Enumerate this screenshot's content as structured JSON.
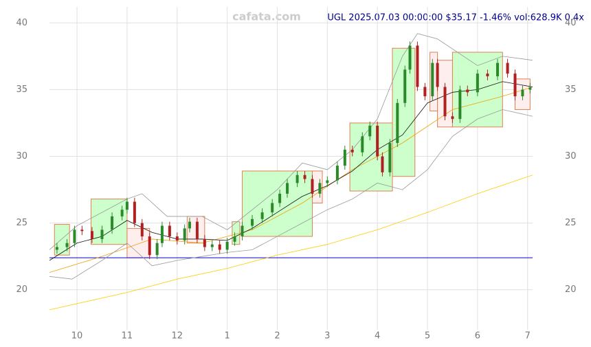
{
  "chart_data": {
    "type": "candlestick",
    "annotation": "UGL 2025.07.03 00:00:00 $35.17 -1.46% vol:628.9K 0.4x",
    "watermark": "cafata.com",
    "xlim": [
      0.45,
      10.1
    ],
    "xticks": [
      {
        "value": 1,
        "label": "10"
      },
      {
        "value": 2,
        "label": "11"
      },
      {
        "value": 3,
        "label": "12"
      },
      {
        "value": 4,
        "label": "1"
      },
      {
        "value": 5,
        "label": "2"
      },
      {
        "value": 6,
        "label": "3"
      },
      {
        "value": 7,
        "label": "4"
      },
      {
        "value": 8,
        "label": "5"
      },
      {
        "value": 9,
        "label": "6"
      },
      {
        "value": 10,
        "label": "7"
      }
    ],
    "ylim": [
      17,
      41.2
    ],
    "yticks": [
      20,
      25,
      30,
      35,
      40
    ],
    "grid": true,
    "up_color": "#2a8a2a",
    "down_color": "#b02020",
    "x": [
      0.6,
      0.8,
      0.95,
      1.1,
      1.3,
      1.5,
      1.7,
      1.9,
      2.0,
      2.15,
      2.3,
      2.45,
      2.6,
      2.7,
      2.85,
      3.0,
      3.15,
      3.25,
      3.4,
      3.55,
      3.7,
      3.85,
      4.0,
      4.15,
      4.3,
      4.5,
      4.7,
      4.9,
      5.05,
      5.2,
      5.4,
      5.55,
      5.7,
      5.85,
      6.0,
      6.2,
      6.35,
      6.5,
      6.7,
      6.85,
      7.0,
      7.1,
      7.25,
      7.4,
      7.55,
      7.65,
      7.8,
      7.95,
      8.1,
      8.2,
      8.35,
      8.5,
      8.65,
      8.8,
      9.0,
      9.2,
      9.4,
      9.6,
      9.75,
      9.9,
      10.05
    ],
    "open": [
      23.0,
      23.2,
      23.5,
      24.5,
      24.4,
      23.8,
      24.5,
      25.5,
      26.0,
      26.6,
      25.0,
      24.0,
      22.6,
      23.5,
      24.8,
      24.0,
      23.7,
      24.6,
      25.1,
      23.8,
      23.2,
      23.4,
      23.0,
      23.6,
      24.0,
      24.8,
      25.3,
      25.8,
      26.5,
      27.2,
      28.0,
      28.6,
      28.3,
      27.2,
      28.0,
      28.2,
      29.3,
      30.5,
      30.3,
      31.5,
      32.3,
      30.0,
      28.8,
      31.0,
      34.0,
      36.5,
      38.3,
      35.2,
      34.5,
      37.0,
      35.2,
      33.0,
      32.8,
      35.0,
      34.8,
      36.2,
      36.0,
      37.0,
      36.2,
      34.5,
      35.0
    ],
    "high": [
      23.5,
      23.8,
      24.8,
      24.8,
      24.7,
      24.8,
      25.8,
      26.3,
      26.9,
      26.9,
      25.3,
      24.3,
      23.8,
      25.1,
      25.1,
      24.3,
      24.9,
      25.4,
      25.4,
      24.1,
      23.7,
      23.7,
      23.9,
      24.3,
      25.1,
      25.6,
      26.1,
      26.8,
      27.5,
      28.3,
      28.9,
      28.9,
      28.6,
      28.3,
      28.5,
      29.6,
      30.8,
      30.8,
      31.8,
      32.6,
      32.6,
      30.3,
      31.3,
      34.3,
      36.8,
      38.6,
      38.6,
      35.5,
      37.3,
      37.3,
      35.5,
      33.3,
      35.3,
      35.3,
      36.5,
      36.5,
      37.3,
      37.3,
      36.5,
      35.3,
      35.5
    ],
    "low": [
      22.7,
      22.9,
      23.2,
      24.1,
      23.5,
      23.5,
      24.2,
      25.2,
      25.7,
      24.7,
      23.7,
      22.3,
      22.3,
      23.2,
      23.7,
      23.4,
      23.4,
      24.3,
      23.5,
      22.9,
      22.9,
      22.7,
      22.7,
      23.3,
      23.7,
      24.5,
      25.0,
      25.5,
      26.2,
      26.9,
      27.7,
      28.0,
      26.9,
      26.9,
      27.7,
      27.9,
      29.0,
      30.0,
      30.0,
      31.2,
      29.7,
      28.5,
      28.5,
      30.7,
      33.7,
      36.2,
      34.9,
      34.2,
      34.2,
      34.9,
      32.7,
      32.5,
      32.5,
      34.5,
      34.5,
      35.7,
      35.7,
      35.9,
      34.2,
      34.2,
      34.7
    ],
    "close": [
      23.2,
      23.5,
      24.5,
      24.4,
      23.8,
      24.5,
      25.5,
      26.0,
      26.6,
      25.0,
      24.0,
      22.6,
      23.5,
      24.8,
      24.0,
      23.7,
      24.6,
      25.1,
      23.8,
      23.2,
      23.4,
      23.0,
      23.6,
      24.0,
      24.8,
      25.3,
      25.8,
      26.5,
      27.2,
      28.0,
      28.6,
      28.3,
      27.2,
      28.0,
      28.2,
      29.3,
      30.5,
      30.3,
      31.5,
      32.3,
      30.0,
      28.8,
      31.0,
      34.0,
      36.5,
      38.3,
      35.2,
      34.5,
      37.0,
      35.2,
      33.0,
      32.8,
      35.0,
      34.8,
      36.2,
      36.0,
      37.0,
      36.2,
      34.5,
      35.0,
      35.17
    ],
    "hline": {
      "value": 22.4,
      "color": "#0000cc"
    },
    "lines": [
      {
        "color": "#ffcc00",
        "x": [
          0.45,
          2.0,
          3.0,
          4.0,
          5.0,
          6.0,
          7.0,
          8.0,
          9.0,
          10.1
        ],
        "values": [
          18.5,
          19.8,
          20.8,
          21.6,
          22.6,
          23.4,
          24.5,
          25.8,
          27.2,
          28.6
        ]
      },
      {
        "color": "#f0a000",
        "x": [
          0.45,
          1.5,
          2.5,
          3.5,
          4.5,
          5.5,
          6.5,
          7.5,
          8.5,
          9.5,
          10.1
        ],
        "values": [
          21.3,
          22.5,
          23.8,
          23.5,
          24.5,
          26.5,
          29.0,
          31.0,
          33.5,
          34.5,
          35.2
        ]
      },
      {
        "color": "#111111",
        "x": [
          0.45,
          1.0,
          1.5,
          2.0,
          2.5,
          3.0,
          3.5,
          4.0,
          4.5,
          5.0,
          5.5,
          6.0,
          6.5,
          7.0,
          7.5,
          8.0,
          8.5,
          9.0,
          9.5,
          10.1
        ],
        "values": [
          22.2,
          23.5,
          24.0,
          25.2,
          24.3,
          23.8,
          23.8,
          23.7,
          24.6,
          25.8,
          27.0,
          27.8,
          28.9,
          30.5,
          31.6,
          34.0,
          34.8,
          35.0,
          35.6,
          35.2
        ]
      },
      {
        "color": "#999999",
        "x": [
          0.45,
          1.0,
          2.0,
          2.3,
          2.8,
          3.5,
          4.0,
          5.0,
          5.5,
          6.0,
          6.5,
          7.0,
          7.5,
          7.8,
          8.2,
          9.0,
          9.5,
          10.1
        ],
        "values": [
          23.0,
          24.8,
          26.8,
          27.2,
          25.5,
          25.5,
          24.5,
          27.5,
          29.5,
          29.0,
          30.5,
          32.8,
          37.5,
          39.2,
          38.8,
          36.8,
          37.5,
          37.2
        ]
      },
      {
        "color": "#999999",
        "x": [
          0.45,
          0.9,
          1.5,
          2.0,
          2.5,
          3.0,
          3.5,
          4.0,
          4.5,
          5.0,
          5.5,
          6.0,
          6.5,
          7.0,
          7.5,
          8.0,
          8.5,
          9.0,
          9.5,
          10.1
        ],
        "values": [
          21.0,
          20.8,
          22.2,
          23.5,
          21.8,
          22.2,
          22.5,
          22.8,
          23.0,
          24.0,
          25.0,
          26.0,
          26.8,
          28.0,
          27.5,
          29.0,
          31.5,
          32.8,
          33.5,
          33.0
        ]
      }
    ],
    "boxes": [
      {
        "color": "#ccffcc",
        "x": [
          0.55,
          0.85
        ],
        "y": [
          22.6,
          24.9
        ]
      },
      {
        "color": "#ccffcc",
        "x": [
          1.28,
          2.0
        ],
        "y": [
          23.4,
          26.8
        ]
      },
      {
        "color": "#ffeeee",
        "x": [
          2.0,
          2.45
        ],
        "y": [
          22.4,
          24.6
        ]
      },
      {
        "color": "#ffeeee",
        "x": [
          3.2,
          3.55
        ],
        "y": [
          23.5,
          25.5
        ]
      },
      {
        "color": "#ccffcc",
        "x": [
          4.1,
          4.25
        ],
        "y": [
          23.4,
          25.1
        ]
      },
      {
        "color": "#ccffcc",
        "x": [
          4.3,
          5.7
        ],
        "y": [
          24.0,
          28.9
        ]
      },
      {
        "color": "#ffeeee",
        "x": [
          5.7,
          5.9
        ],
        "y": [
          26.5,
          28.9
        ]
      },
      {
        "color": "#ccffcc",
        "x": [
          6.45,
          7.3
        ],
        "y": [
          27.4,
          32.5
        ]
      },
      {
        "color": "#ccffcc",
        "x": [
          7.3,
          7.75
        ],
        "y": [
          28.5,
          38.1
        ]
      },
      {
        "color": "#ffeeee",
        "x": [
          8.05,
          8.2
        ],
        "y": [
          33.4,
          37.8
        ]
      },
      {
        "color": "#ffeeee",
        "x": [
          8.2,
          8.5
        ],
        "y": [
          32.2,
          37.2
        ]
      },
      {
        "color": "#ccffcc",
        "x": [
          8.5,
          9.5
        ],
        "y": [
          32.2,
          37.8
        ]
      },
      {
        "color": "#ffeeee",
        "x": [
          9.75,
          10.05
        ],
        "y": [
          33.5,
          35.8
        ]
      }
    ]
  }
}
